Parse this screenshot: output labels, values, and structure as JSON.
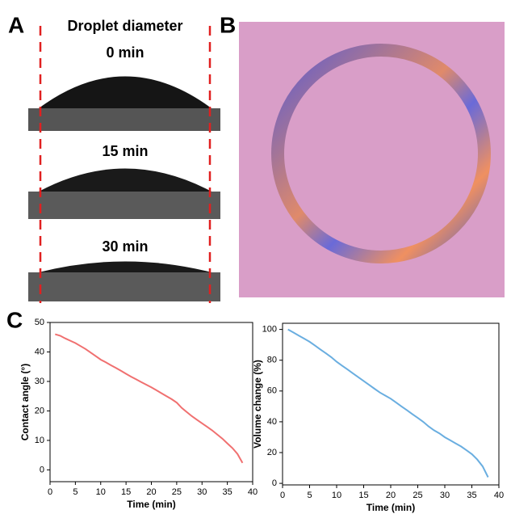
{
  "panels": {
    "a": "A",
    "b": "B",
    "c": "C"
  },
  "droplet_header": "Droplet  diameter",
  "frames": [
    "0 min",
    "15 min",
    "30 min"
  ],
  "chart_data": [
    {
      "type": "line",
      "color": "#f07070",
      "xlabel": "Time (min)",
      "ylabel": "Contact angle (°)",
      "x": [
        1,
        2,
        3,
        4,
        5,
        6,
        7,
        8,
        9,
        10,
        11,
        12,
        13,
        14,
        15,
        16,
        17,
        18,
        19,
        20,
        21,
        22,
        23,
        24,
        25,
        26,
        27,
        28,
        29,
        30,
        31,
        32,
        33,
        34,
        35,
        36,
        37,
        38
      ],
      "values": [
        46,
        45.5,
        44.6,
        43.8,
        43,
        42,
        41,
        39.8,
        38.6,
        37.4,
        36.5,
        35.5,
        34.6,
        33.6,
        32.6,
        31.6,
        30.7,
        29.8,
        28.9,
        28,
        27,
        26,
        25,
        24,
        22.8,
        21,
        19.6,
        18.2,
        17,
        15.8,
        14.6,
        13.4,
        12,
        10.6,
        9,
        7.4,
        5.4,
        2.4
      ],
      "xlim": [
        0,
        40
      ],
      "xticks": [
        0,
        5,
        10,
        15,
        20,
        25,
        30,
        35,
        40
      ],
      "ylim": [
        -4,
        50
      ],
      "yticks": [
        0,
        10,
        20,
        30,
        40,
        50
      ]
    },
    {
      "type": "line",
      "color": "#6aaee0",
      "xlabel": "Time (min)",
      "ylabel": "Volume change (%)",
      "x": [
        1,
        2,
        3,
        4,
        5,
        6,
        7,
        8,
        9,
        10,
        11,
        12,
        13,
        14,
        15,
        16,
        17,
        18,
        19,
        20,
        21,
        22,
        23,
        24,
        25,
        26,
        27,
        28,
        29,
        30,
        31,
        32,
        33,
        34,
        35,
        36,
        37,
        38
      ],
      "values": [
        100,
        98,
        96,
        94,
        92,
        89.5,
        87,
        84.5,
        82,
        79,
        76.5,
        74,
        71.5,
        69,
        66.5,
        64,
        61.5,
        59,
        57,
        55,
        52.5,
        50,
        47.5,
        45,
        42.5,
        40,
        37,
        34.5,
        32.5,
        30,
        28,
        26,
        24,
        21.5,
        19,
        15.5,
        11,
        4
      ],
      "xlim": [
        0,
        40
      ],
      "xticks": [
        0,
        5,
        10,
        15,
        20,
        25,
        30,
        35,
        40
      ],
      "ylim": [
        -1,
        104
      ],
      "yticks": [
        0,
        20,
        40,
        60,
        80,
        100
      ]
    }
  ]
}
